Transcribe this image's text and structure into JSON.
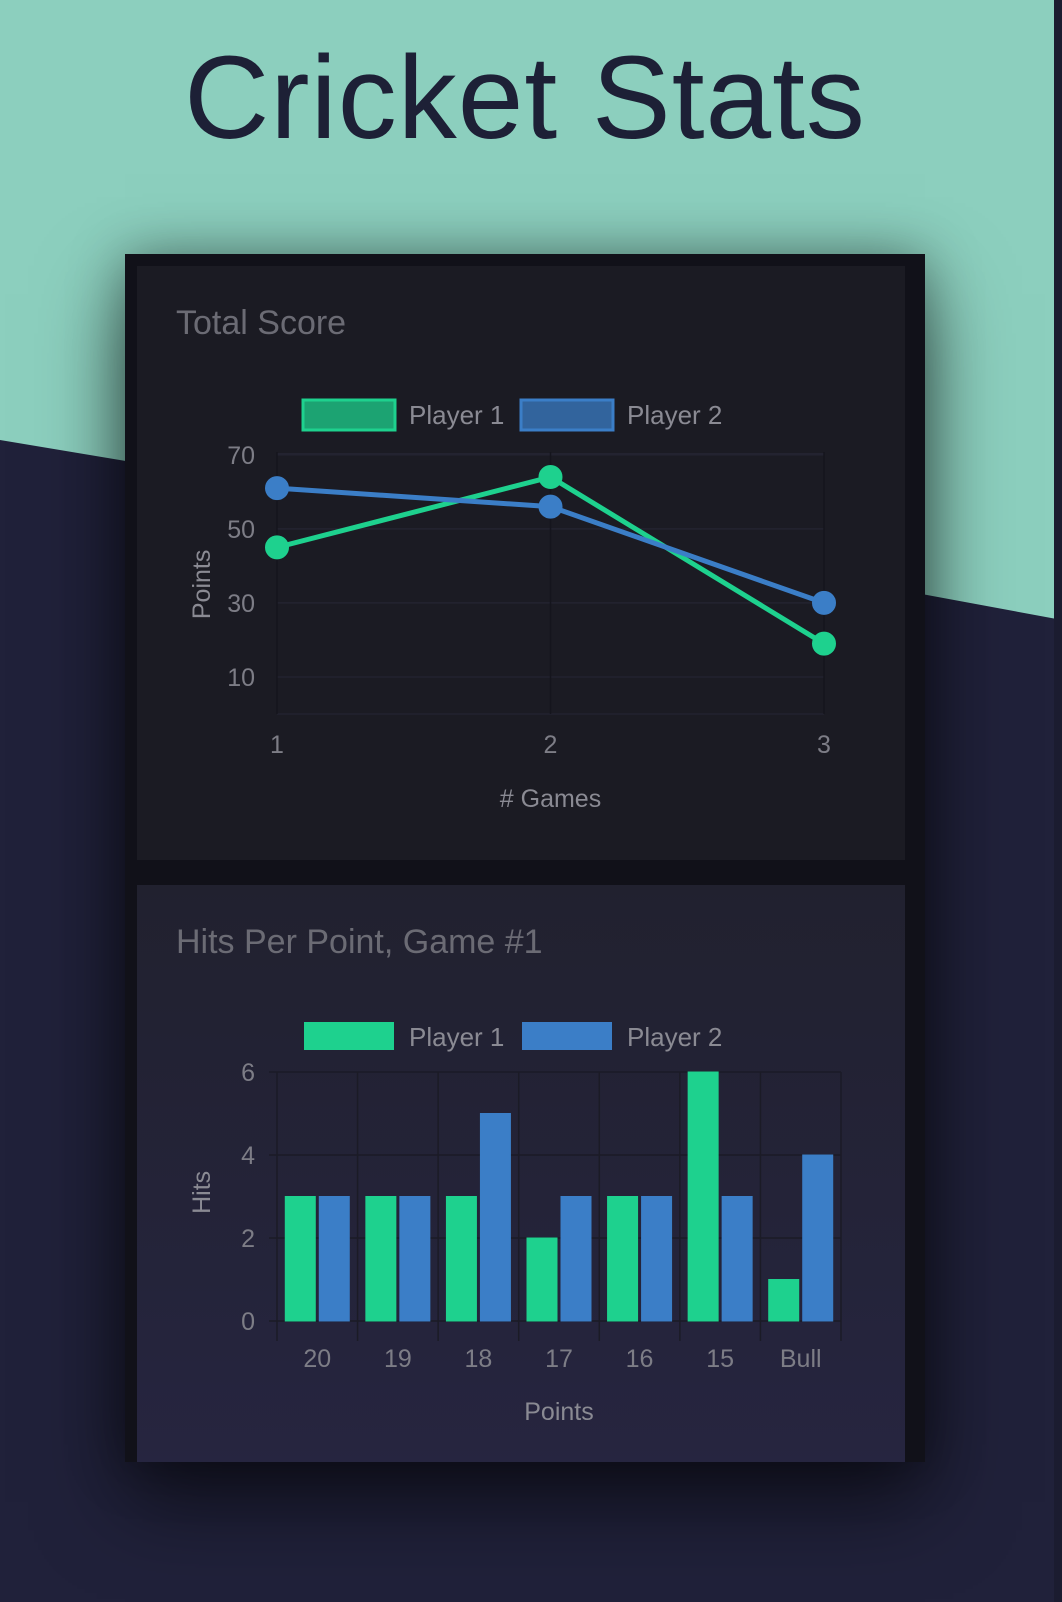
{
  "page": {
    "title": "Cricket Stats",
    "colors": {
      "mint": "#8ccfbe",
      "navy": "#20213a",
      "title_text": "#1d2036"
    }
  },
  "chart_data": [
    {
      "type": "line",
      "title": "Total Score",
      "x": [
        1,
        2,
        3
      ],
      "xlabel": "# Games",
      "ylabel": "Points",
      "yticks": [
        10,
        30,
        50,
        70
      ],
      "ylim": [
        0,
        70
      ],
      "legend": "top",
      "grid": true,
      "series": [
        {
          "name": "Player 1",
          "color": "#1ed18e",
          "values": [
            45,
            64,
            19
          ]
        },
        {
          "name": "Player 2",
          "color": "#3b7ec7",
          "values": [
            61,
            56,
            30
          ]
        }
      ]
    },
    {
      "type": "bar",
      "title": "Hits Per Point, Game #1",
      "categories": [
        "20",
        "19",
        "18",
        "17",
        "16",
        "15",
        "Bull"
      ],
      "xlabel": "Points",
      "ylabel": "Hits",
      "yticks": [
        0,
        2,
        4,
        6
      ],
      "ylim": [
        0,
        6
      ],
      "legend": "top",
      "grid": true,
      "series": [
        {
          "name": "Player 1",
          "color": "#1ed18e",
          "values": [
            3,
            3,
            3,
            2,
            3,
            6,
            1
          ]
        },
        {
          "name": "Player 2",
          "color": "#3b7ec7",
          "values": [
            3,
            3,
            5,
            3,
            3,
            3,
            4
          ]
        }
      ]
    }
  ]
}
